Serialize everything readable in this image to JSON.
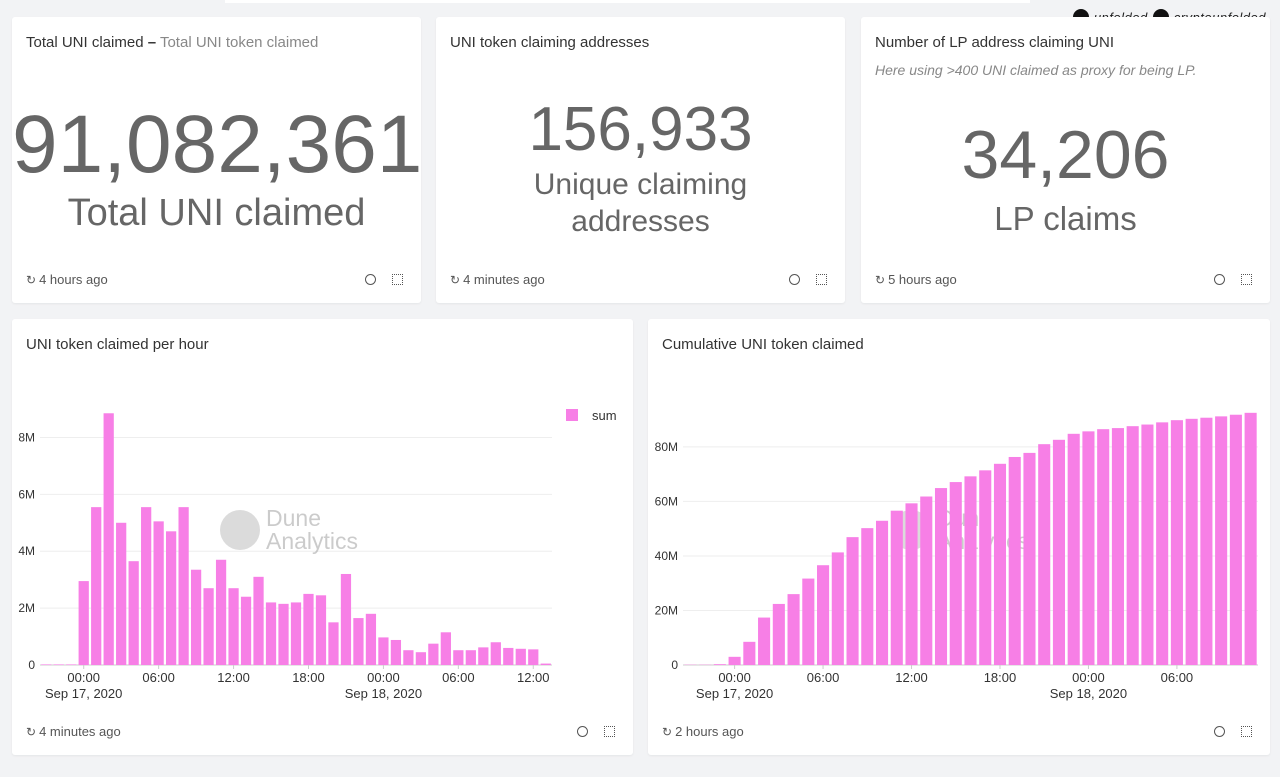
{
  "branding": {
    "telegram": "unfolded",
    "twitter": "cryptounfolded"
  },
  "widgets": [
    {
      "title": "Total UNI claimed",
      "subtitle": "Total UNI token claimed",
      "value": "91,082,361",
      "label": "Total UNI claimed",
      "refreshed": "4 hours ago"
    },
    {
      "title": "UNI token claiming addresses",
      "value": "156,933",
      "label": "Unique claiming addresses",
      "refreshed": "4 minutes ago"
    },
    {
      "title": "Number of LP address claiming UNI",
      "note": "Here using >400 UNI claimed as proxy for being LP.",
      "value": "34,206",
      "label": "LP claims",
      "refreshed": "5 hours ago"
    }
  ],
  "chart_data": [
    {
      "type": "bar",
      "title": "UNI token claimed per hour",
      "refreshed": "4 minutes ago",
      "watermark": "Dune Analytics",
      "legend": "top-right",
      "grid": true,
      "x": [
        "2020-09-16 21:00",
        "2020-09-16 22:00",
        "2020-09-16 23:00",
        "2020-09-17 00:00",
        "2020-09-17 01:00",
        "2020-09-17 02:00",
        "2020-09-17 03:00",
        "2020-09-17 04:00",
        "2020-09-17 05:00",
        "2020-09-17 06:00",
        "2020-09-17 07:00",
        "2020-09-17 08:00",
        "2020-09-17 09:00",
        "2020-09-17 10:00",
        "2020-09-17 11:00",
        "2020-09-17 12:00",
        "2020-09-17 13:00",
        "2020-09-17 14:00",
        "2020-09-17 15:00",
        "2020-09-17 16:00",
        "2020-09-17 17:00",
        "2020-09-17 18:00",
        "2020-09-17 19:00",
        "2020-09-17 20:00",
        "2020-09-17 21:00",
        "2020-09-17 22:00",
        "2020-09-17 23:00",
        "2020-09-18 00:00",
        "2020-09-18 01:00",
        "2020-09-18 02:00",
        "2020-09-18 03:00",
        "2020-09-18 04:00",
        "2020-09-18 05:00",
        "2020-09-18 06:00",
        "2020-09-18 07:00",
        "2020-09-18 08:00",
        "2020-09-18 09:00",
        "2020-09-18 10:00",
        "2020-09-18 11:00",
        "2020-09-18 12:00",
        "2020-09-18 13:00"
      ],
      "series": [
        {
          "name": "sum",
          "color": "#f77fe6",
          "values": [
            20000,
            20000,
            20000,
            2950000,
            5550000,
            8850000,
            5000000,
            3650000,
            5550000,
            5050000,
            4700000,
            5550000,
            3350000,
            2700000,
            3700000,
            2700000,
            2400000,
            3100000,
            2200000,
            2150000,
            2200000,
            2500000,
            2450000,
            1500000,
            3200000,
            1650000,
            1800000,
            970000,
            880000,
            520000,
            450000,
            750000,
            1150000,
            520000,
            520000,
            620000,
            800000,
            600000,
            570000,
            550000,
            50000
          ]
        }
      ],
      "xlim": [
        "2020-09-16 20:30",
        "2020-09-18 13:30"
      ],
      "xticks": [
        {
          "value": "2020-09-17 00:00",
          "label": "00:00"
        },
        {
          "value": "2020-09-17 06:00",
          "label": "06:00"
        },
        {
          "value": "2020-09-17 12:00",
          "label": "12:00"
        },
        {
          "value": "2020-09-17 18:00",
          "label": "18:00"
        },
        {
          "value": "2020-09-18 00:00",
          "label": "00:00"
        },
        {
          "value": "2020-09-18 06:00",
          "label": "06:00"
        },
        {
          "value": "2020-09-18 12:00",
          "label": "12:00"
        }
      ],
      "xdate_labels": [
        {
          "value": "2020-09-17 00:00",
          "label": "Sep 17, 2020"
        },
        {
          "value": "2020-09-18 00:00",
          "label": "Sep 18, 2020"
        }
      ],
      "ylim": [
        0,
        9000000
      ],
      "yticks": [
        0,
        {
          "value": 2000000,
          "label": "2M"
        },
        {
          "value": 4000000,
          "label": "4M"
        },
        {
          "value": 6000000,
          "label": "6M"
        },
        {
          "value": 8000000,
          "label": "8M"
        }
      ]
    },
    {
      "type": "bar",
      "title": "Cumulative UNI token claimed",
      "refreshed": "2 hours ago",
      "watermark": "Dune Analytics",
      "grid": true,
      "color": "#f77fe6",
      "x": [
        "2020-09-16 21:00",
        "2020-09-16 22:00",
        "2020-09-16 23:00",
        "2020-09-17 00:00",
        "2020-09-17 01:00",
        "2020-09-17 02:00",
        "2020-09-17 03:00",
        "2020-09-17 04:00",
        "2020-09-17 05:00",
        "2020-09-17 06:00",
        "2020-09-17 07:00",
        "2020-09-17 08:00",
        "2020-09-17 09:00",
        "2020-09-17 10:00",
        "2020-09-17 11:00",
        "2020-09-17 12:00",
        "2020-09-17 13:00",
        "2020-09-17 14:00",
        "2020-09-17 15:00",
        "2020-09-17 16:00",
        "2020-09-17 17:00",
        "2020-09-17 18:00",
        "2020-09-17 19:00",
        "2020-09-17 20:00",
        "2020-09-17 21:00",
        "2020-09-17 22:00",
        "2020-09-17 23:00",
        "2020-09-18 00:00",
        "2020-09-18 01:00",
        "2020-09-18 02:00",
        "2020-09-18 03:00",
        "2020-09-18 04:00",
        "2020-09-18 05:00",
        "2020-09-18 06:00",
        "2020-09-18 07:00",
        "2020-09-18 08:00",
        "2020-09-18 09:00",
        "2020-09-18 10:00",
        "2020-09-18 11:00"
      ],
      "values": [
        100000,
        100000,
        300000,
        3000000,
        8500000,
        17400000,
        22400000,
        26000000,
        31700000,
        36600000,
        41300000,
        46900000,
        50200000,
        52900000,
        56600000,
        59300000,
        61800000,
        64900000,
        67100000,
        69200000,
        71400000,
        73800000,
        76300000,
        77800000,
        81000000,
        82600000,
        84800000,
        85700000,
        86500000,
        86900000,
        87600000,
        88200000,
        89000000,
        89800000,
        90300000,
        90700000,
        91200000,
        91800000,
        92500000
      ],
      "xlim": [
        "2020-09-16 20:30",
        "2020-09-18 11:30"
      ],
      "xticks": [
        {
          "value": "2020-09-17 00:00",
          "label": "00:00"
        },
        {
          "value": "2020-09-17 06:00",
          "label": "06:00"
        },
        {
          "value": "2020-09-17 12:00",
          "label": "12:00"
        },
        {
          "value": "2020-09-17 18:00",
          "label": "18:00"
        },
        {
          "value": "2020-09-18 00:00",
          "label": "00:00"
        },
        {
          "value": "2020-09-18 06:00",
          "label": "06:00"
        }
      ],
      "xdate_labels": [
        {
          "value": "2020-09-17 00:00",
          "label": "Sep 17, 2020"
        },
        {
          "value": "2020-09-18 00:00",
          "label": "Sep 18, 2020"
        }
      ],
      "ylim": [
        0,
        95000000
      ],
      "yticks": [
        0,
        {
          "value": 20000000,
          "label": "20M"
        },
        {
          "value": 40000000,
          "label": "40M"
        },
        {
          "value": 60000000,
          "label": "60M"
        },
        {
          "value": 80000000,
          "label": "80M"
        }
      ]
    }
  ]
}
